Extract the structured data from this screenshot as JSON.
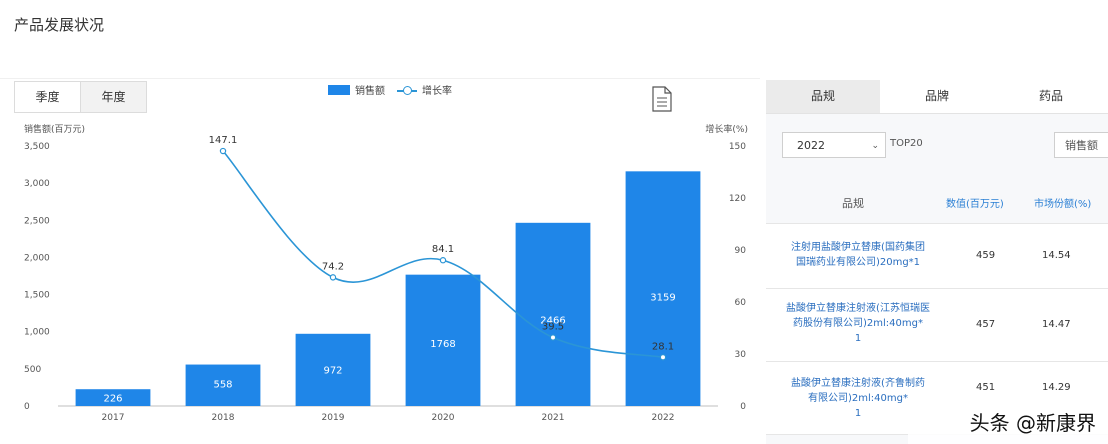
{
  "page": {
    "title": "产品发展状况"
  },
  "tabs": [
    {
      "label": "季度",
      "active": false
    },
    {
      "label": "年度",
      "active": true
    }
  ],
  "legend": {
    "bar_label": "销售额",
    "line_label": "增长率"
  },
  "icons": {
    "export": "document-icon"
  },
  "colors": {
    "bar": "#1f86e8",
    "line": "#2b95d6"
  },
  "chart_data": {
    "type": "bar",
    "categories": [
      "2017",
      "2018",
      "2019",
      "2020",
      "2021",
      "2022"
    ],
    "series": [
      {
        "name": "销售额",
        "type": "bar",
        "axis": "left",
        "values": [
          226,
          558,
          972,
          1768,
          2466,
          3159
        ]
      },
      {
        "name": "增长率",
        "type": "line",
        "axis": "right",
        "values": [
          null,
          147.1,
          74.2,
          84.1,
          39.5,
          28.1
        ]
      }
    ],
    "ylabel_left": "销售额(百万元)",
    "ylabel_right": "增长率(%)",
    "ylim_left": [
      0,
      3500
    ],
    "ylim_right": [
      0,
      150
    ],
    "yticks_left": [
      "0",
      "500",
      "1,000",
      "1,500",
      "2,000",
      "2,500",
      "3,000",
      "3,500"
    ],
    "yticks_right": [
      "0",
      "30",
      "60",
      "90",
      "120",
      "150"
    ],
    "bar_labels": [
      "226",
      "558",
      "972",
      "1768",
      "2466",
      "3159"
    ],
    "line_labels": [
      "",
      "147.1",
      "74.2",
      "84.1",
      "39.5",
      "28.1"
    ],
    "grid": false,
    "legend_position": "top-center"
  },
  "side_panel": {
    "tabs": [
      {
        "label": "品规",
        "active": true
      },
      {
        "label": "品牌",
        "active": false
      },
      {
        "label": "药品",
        "active": false
      }
    ],
    "year_select": "2022",
    "top_label": "TOP20",
    "sort_button": "销售额",
    "table": {
      "headers": {
        "name": "品规",
        "amount": "数值(百万元)",
        "share": "市场份额(%)"
      },
      "rows": [
        {
          "name_lines": [
            "注射用盐酸伊立替康(国药集团",
            "国瑞药业有限公司)20mg*1"
          ],
          "amount": "459",
          "share": "14.54"
        },
        {
          "name_lines": [
            "盐酸伊立替康注射液(江苏恒瑞医",
            "药股份有限公司)2ml:40mg*",
            "1"
          ],
          "amount": "457",
          "share": "14.47"
        },
        {
          "name_lines": [
            "盐酸伊立替康注射液(齐鲁制药",
            "有限公司)2ml:40mg*",
            "1"
          ],
          "amount": "451",
          "share": "14.29"
        }
      ]
    }
  },
  "watermark": "头条 @新康界"
}
